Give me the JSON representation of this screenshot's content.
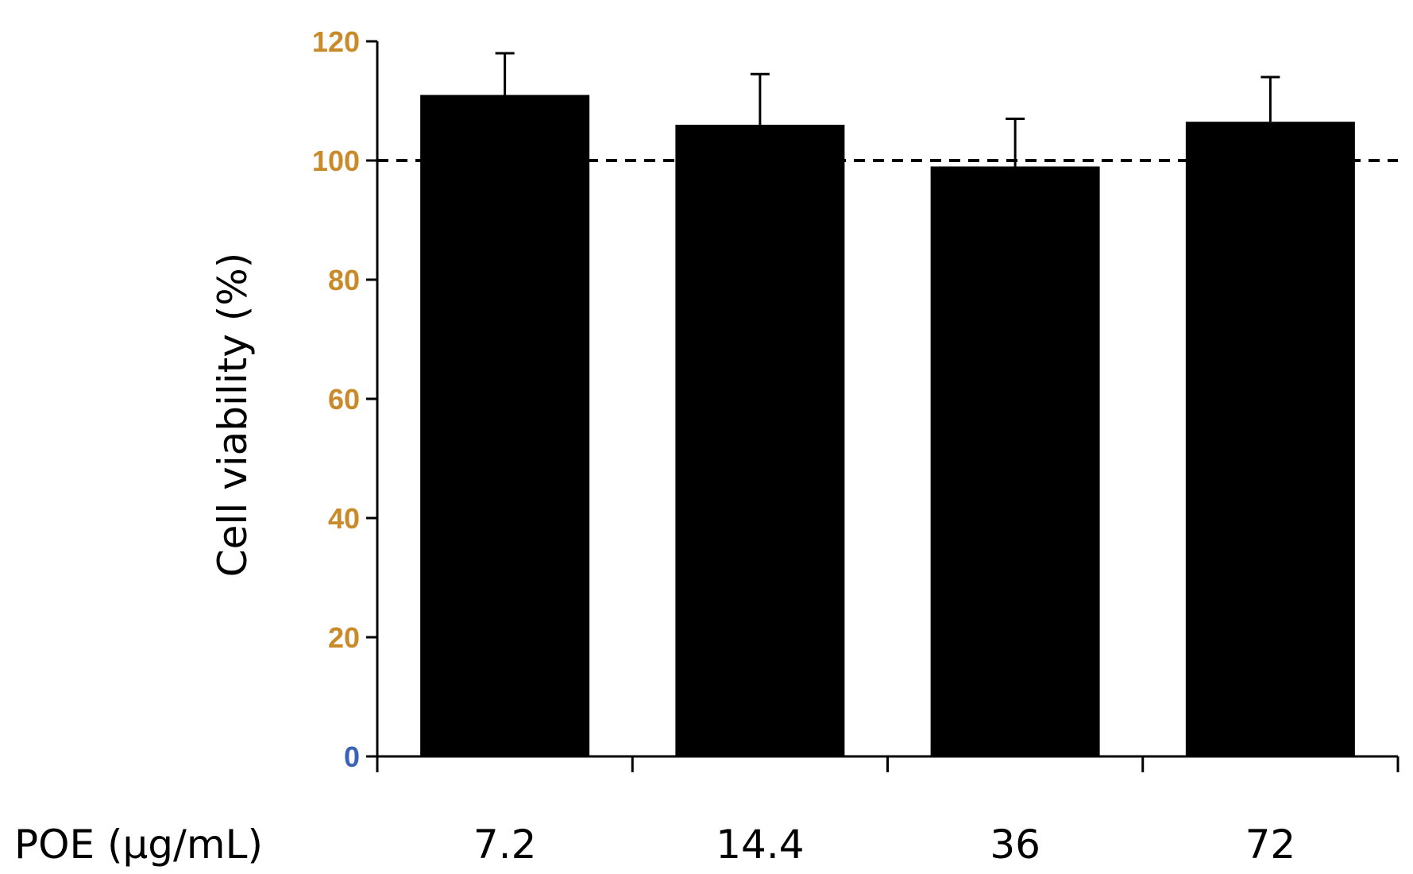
{
  "chart_data": {
    "type": "bar",
    "xlabel": "POE (μg/mL)",
    "ylabel": "Cell viability (%)",
    "categories": [
      "7.2",
      "14.4",
      "36",
      "72"
    ],
    "values": [
      111,
      106,
      99,
      106.5
    ],
    "errors": [
      7,
      8.5,
      8,
      7.5
    ],
    "ylim": [
      0,
      120
    ],
    "yticks": [
      0,
      20,
      40,
      60,
      80,
      100,
      120
    ],
    "reference_line": 100,
    "bar_color": "#000000",
    "tick_label_color": "#c98a2a",
    "zero_tick_color": "#3a62b5",
    "grid": false,
    "legend": "none"
  }
}
